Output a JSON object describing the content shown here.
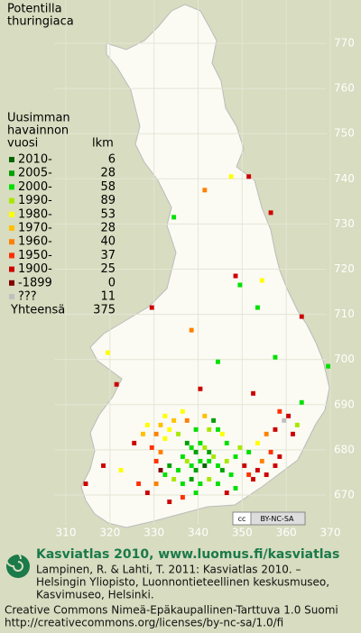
{
  "title": [
    "Potentilla",
    "thuringiaca"
  ],
  "legend": {
    "header": [
      "Uusimman",
      "havainnon",
      "vuosi"
    ],
    "count_header": "lkm",
    "rows": [
      {
        "label": "2010-",
        "count": 6,
        "color": "#006400"
      },
      {
        "label": "2005-",
        "count": 28,
        "color": "#00a000"
      },
      {
        "label": "2000-",
        "count": 58,
        "color": "#00e000"
      },
      {
        "label": "1990-",
        "count": 89,
        "color": "#a8e800"
      },
      {
        "label": "1980-",
        "count": 53,
        "color": "#ffff00"
      },
      {
        "label": "1970-",
        "count": 28,
        "color": "#ffc000"
      },
      {
        "label": "1960-",
        "count": 40,
        "color": "#ff8000"
      },
      {
        "label": "1950-",
        "count": 37,
        "color": "#ff3000"
      },
      {
        "label": "1900-",
        "count": 25,
        "color": "#cc0000"
      },
      {
        "label": "-1899",
        "count": 0,
        "color": "#800000"
      },
      {
        "label": "???",
        "count": 11,
        "color": "#c0c0c0"
      }
    ],
    "total_label": "Yhteensä",
    "total": 375
  },
  "grid": {
    "xticks": [
      310,
      320,
      330,
      340,
      350,
      360,
      370
    ],
    "yticks": [
      670,
      680,
      690,
      700,
      710,
      720,
      730,
      740,
      750,
      760,
      770
    ]
  },
  "observations": [
    [
      334,
      731,
      2
    ],
    [
      341,
      737,
      6
    ],
    [
      347,
      740,
      4
    ],
    [
      351,
      740,
      8
    ],
    [
      356,
      732,
      8
    ],
    [
      348,
      718,
      8
    ],
    [
      349,
      716,
      2
    ],
    [
      354,
      717,
      4
    ],
    [
      353,
      711,
      2
    ],
    [
      329,
      711,
      8
    ],
    [
      363,
      709,
      8
    ],
    [
      319,
      701,
      4
    ],
    [
      321,
      694,
      8
    ],
    [
      340,
      693,
      8
    ],
    [
      344,
      699,
      2
    ],
    [
      357,
      700,
      2
    ],
    [
      369,
      698,
      2
    ],
    [
      352,
      692,
      8
    ],
    [
      363,
      690,
      2
    ],
    [
      338,
      706,
      6
    ],
    [
      332,
      687,
      4
    ],
    [
      331,
      685,
      5
    ],
    [
      333,
      684,
      4
    ],
    [
      330,
      683,
      6
    ],
    [
      334,
      686,
      5
    ],
    [
      332,
      682,
      4
    ],
    [
      335,
      683,
      3
    ],
    [
      336,
      688,
      4
    ],
    [
      329,
      680,
      7
    ],
    [
      331,
      679,
      6
    ],
    [
      337,
      681,
      1
    ],
    [
      338,
      680,
      2
    ],
    [
      339,
      679,
      1
    ],
    [
      340,
      681,
      2
    ],
    [
      341,
      680,
      3
    ],
    [
      342,
      679,
      1
    ],
    [
      336,
      678,
      2
    ],
    [
      337,
      677,
      3
    ],
    [
      338,
      676,
      2
    ],
    [
      339,
      675,
      1
    ],
    [
      340,
      677,
      2
    ],
    [
      341,
      676,
      0
    ],
    [
      342,
      677,
      2
    ],
    [
      343,
      678,
      3
    ],
    [
      344,
      676,
      2
    ],
    [
      345,
      675,
      1
    ],
    [
      346,
      677,
      3
    ],
    [
      347,
      674,
      2
    ],
    [
      335,
      675,
      2
    ],
    [
      334,
      673,
      3
    ],
    [
      336,
      672,
      2
    ],
    [
      338,
      673,
      1
    ],
    [
      340,
      672,
      2
    ],
    [
      342,
      673,
      3
    ],
    [
      344,
      672,
      2
    ],
    [
      333,
      676,
      1
    ],
    [
      332,
      674,
      2
    ],
    [
      330,
      672,
      6
    ],
    [
      328,
      670,
      8
    ],
    [
      326,
      672,
      7
    ],
    [
      322,
      675,
      4
    ],
    [
      318,
      676,
      8
    ],
    [
      314,
      672,
      8
    ],
    [
      350,
      676,
      8
    ],
    [
      351,
      674,
      7
    ],
    [
      352,
      673,
      8
    ],
    [
      353,
      675,
      8
    ],
    [
      354,
      677,
      6
    ],
    [
      355,
      674,
      8
    ],
    [
      356,
      679,
      7
    ],
    [
      357,
      676,
      8
    ],
    [
      358,
      678,
      8
    ],
    [
      351,
      679,
      2
    ],
    [
      349,
      680,
      3
    ],
    [
      348,
      678,
      2
    ],
    [
      353,
      681,
      4
    ],
    [
      355,
      683,
      6
    ],
    [
      357,
      684,
      8
    ],
    [
      359,
      686,
      10
    ],
    [
      360,
      687,
      8
    ],
    [
      358,
      688,
      7
    ],
    [
      361,
      683,
      8
    ],
    [
      362,
      685,
      3
    ],
    [
      346,
      681,
      2
    ],
    [
      345,
      683,
      4
    ],
    [
      344,
      684,
      2
    ],
    [
      342,
      684,
      3
    ],
    [
      339,
      684,
      2
    ],
    [
      343,
      686,
      1
    ],
    [
      341,
      687,
      5
    ],
    [
      337,
      686,
      6
    ],
    [
      328,
      685,
      4
    ],
    [
      327,
      683,
      5
    ],
    [
      325,
      681,
      8
    ],
    [
      330,
      677,
      7
    ],
    [
      331,
      675,
      9
    ],
    [
      348,
      671,
      2
    ],
    [
      346,
      670,
      8
    ],
    [
      333,
      668,
      8
    ],
    [
      336,
      669,
      7
    ],
    [
      339,
      670,
      2
    ]
  ],
  "badge": [
    "cc",
    "BY-NC-SA"
  ],
  "footer": {
    "site": "Kasviatlas 2010, www.luomus.fi/kasviatlas",
    "citation": [
      "Lampinen, R. & Lahti, T. 2011: Kasviatlas 2010. –",
      "Helsingin Yliopisto, Luonnontieteellinen keskusmuseo,",
      "Kasvimuseo, Helsinki."
    ],
    "license": [
      "Creative Commons Nimeä-Epäkaupallinen-Tarttuva 1.0 Suomi",
      "http://creativecommons.org/licenses/by-nc-sa/1.0/fi"
    ]
  }
}
